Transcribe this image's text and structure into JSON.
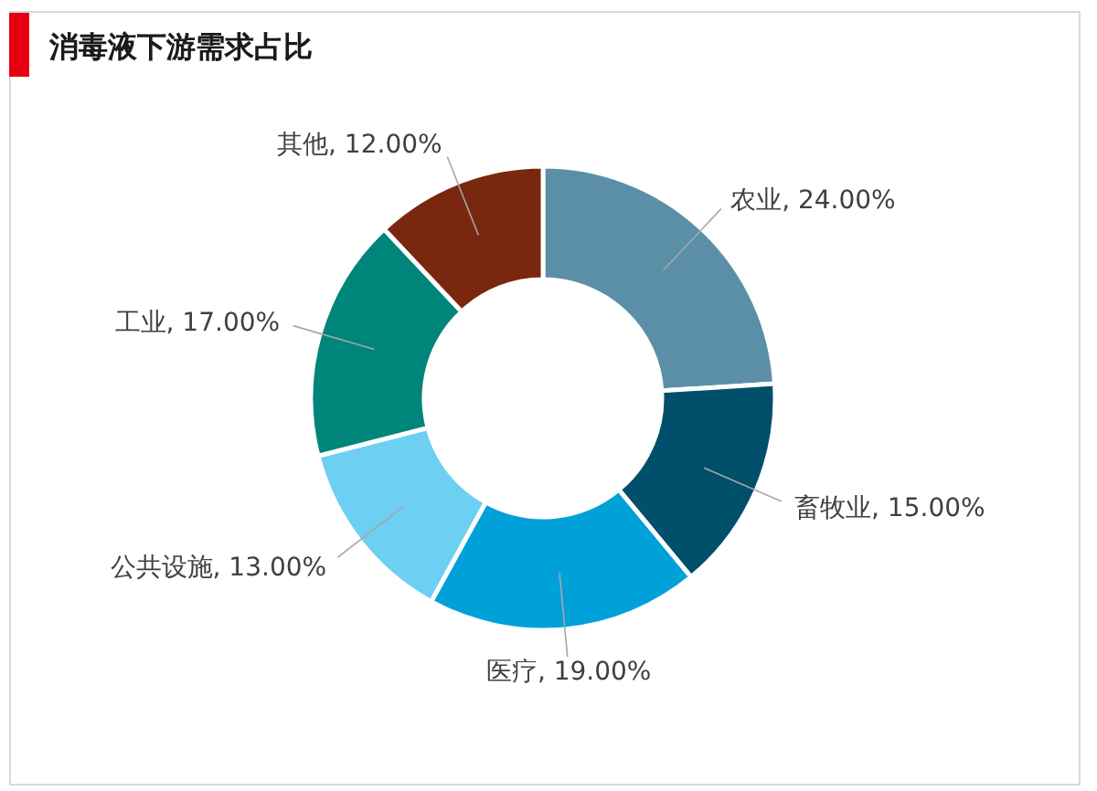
{
  "chart_data": {
    "type": "donut",
    "title": "消毒液下游需求占比",
    "categories": [
      "农业",
      "畜牧业",
      "医疗",
      "公共设施",
      "工业",
      "其他"
    ],
    "values": [
      24,
      15,
      19,
      13,
      17,
      12
    ],
    "colors": [
      "#5b8fa8",
      "#004f6b",
      "#00a1d9",
      "#6dcff2",
      "#00857b",
      "#7a2710"
    ],
    "value_labels": [
      "24.00%",
      "15.00%",
      "19.00%",
      "13.00%",
      "17.00%",
      "12.00%"
    ]
  }
}
